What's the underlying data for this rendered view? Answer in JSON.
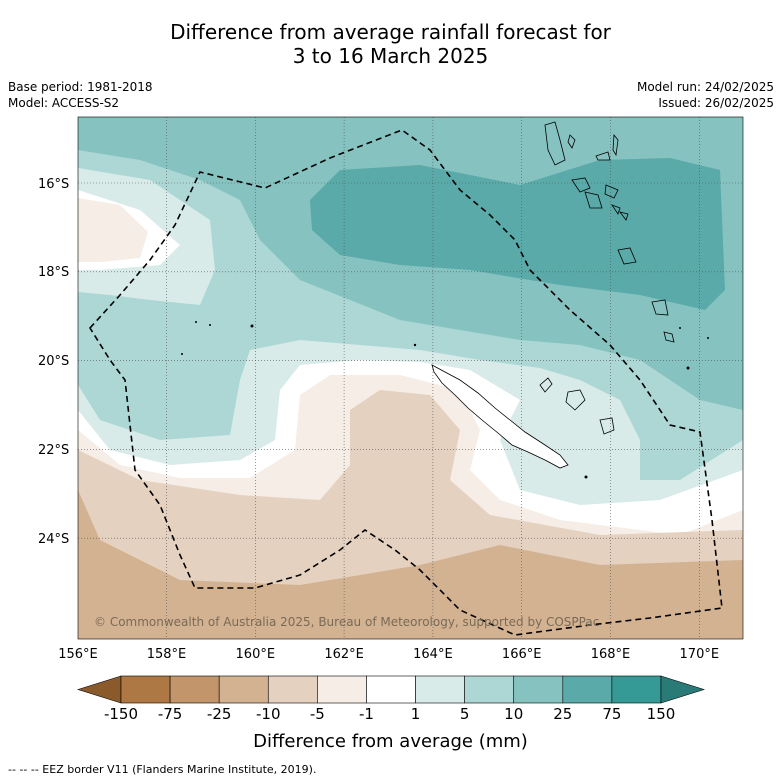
{
  "header": {
    "title_line1": "Difference from average rainfall forecast for",
    "title_line2": "3 to 16 March 2025"
  },
  "meta": {
    "base_period": "Base period: 1981-2018",
    "model": "Model: ACCESS-S2",
    "model_run": "Model run: 24/02/2025",
    "issued": "Issued: 26/02/2025"
  },
  "map": {
    "copyright": "© Commonwealth of Australia 2025, Bureau of Meteorology, supported by COSPPac",
    "lat_labels": [
      "16°S",
      "18°S",
      "20°S",
      "22°S",
      "24°S"
    ],
    "lon_labels": [
      "156°E",
      "158°E",
      "160°E",
      "162°E",
      "164°E",
      "166°E",
      "168°E",
      "170°E"
    ]
  },
  "colorbar": {
    "title": "Difference from average (mm)",
    "tick_labels": [
      "-150",
      "-75",
      "-25",
      "-10",
      "-5",
      "-1",
      "1",
      "5",
      "10",
      "25",
      "75",
      "150"
    ],
    "colors": [
      "#8b5a2b",
      "#ad7843",
      "#c2956b",
      "#d3b292",
      "#e5d1bf",
      "#f5ede6",
      "#ffffff",
      "#d8ebe9",
      "#acd7d5",
      "#86c2c0",
      "#5aaaa9",
      "#359a96",
      "#2a7a77"
    ]
  },
  "footer": {
    "legend_text": "--  --  -- EEZ border V11 (Flanders Marine Institute, 2019)."
  }
}
